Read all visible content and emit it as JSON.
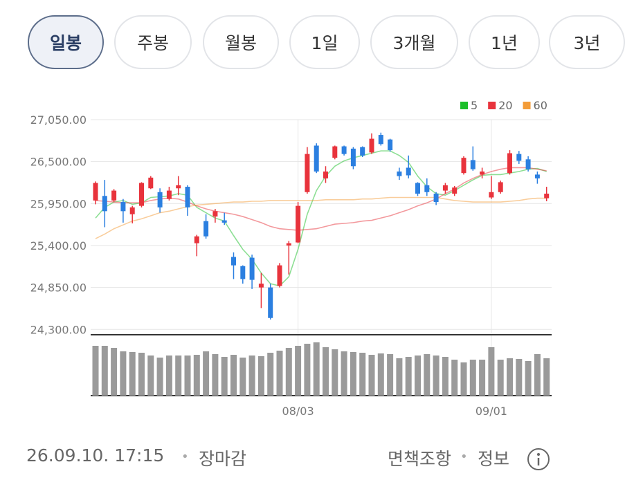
{
  "tabs": [
    "일봉",
    "주봉",
    "월봉",
    "1일",
    "3개월",
    "1년",
    "3년"
  ],
  "selected_tab": 0,
  "chart_data": {
    "type": "candlestick",
    "categories": [
      null,
      null,
      null,
      null,
      null,
      null,
      null,
      null,
      null,
      null,
      null,
      null,
      null,
      null,
      null,
      null,
      null,
      null,
      null,
      null,
      null,
      null,
      "08/03",
      null,
      null,
      null,
      null,
      null,
      null,
      null,
      null,
      null,
      null,
      null,
      null,
      null,
      null,
      null,
      null,
      null,
      null,
      null,
      null,
      "09/01",
      null,
      null,
      null,
      null,
      null,
      null
    ],
    "open": [
      25990,
      26050,
      25990,
      25970,
      25810,
      25920,
      26150,
      26100,
      26010,
      26150,
      26170,
      25430,
      25720,
      25780,
      25730,
      25250,
      25130,
      25240,
      24850,
      24850,
      24870,
      25400,
      25440,
      26100,
      26710,
      26280,
      26550,
      26700,
      26670,
      26690,
      26620,
      26850,
      26790,
      26370,
      26420,
      26220,
      26190,
      26080,
      26120,
      26080,
      26350,
      26520,
      26330,
      26030,
      26100,
      26350,
      26600,
      26530,
      26330,
      26020
    ],
    "high": [
      26240,
      26260,
      26140,
      26010,
      25920,
      26230,
      26310,
      26150,
      26170,
      26310,
      26190,
      25540,
      25810,
      25880,
      25830,
      25310,
      25140,
      25280,
      25040,
      24900,
      25170,
      25460,
      25970,
      26690,
      26740,
      26440,
      26710,
      26710,
      26690,
      26700,
      26870,
      26880,
      26800,
      26420,
      26580,
      26230,
      26280,
      26100,
      26220,
      26180,
      26570,
      26700,
      26420,
      26310,
      26250,
      26650,
      26640,
      26570,
      26370,
      26170
    ],
    "low": [
      25940,
      25640,
      25970,
      25700,
      25690,
      25900,
      26140,
      25830,
      25990,
      26060,
      25790,
      25260,
      25490,
      25700,
      25670,
      24960,
      24900,
      24830,
      24580,
      24430,
      24850,
      25020,
      25430,
      26080,
      26350,
      26220,
      26530,
      26580,
      26400,
      26560,
      26600,
      26710,
      26630,
      26260,
      26280,
      26050,
      26050,
      25930,
      26080,
      26050,
      26330,
      26380,
      26280,
      26010,
      26080,
      26330,
      26470,
      26370,
      26210,
      25980
    ],
    "close": [
      26220,
      25850,
      26120,
      25850,
      25900,
      26220,
      26290,
      25900,
      26120,
      26190,
      25900,
      25520,
      25520,
      25850,
      25700,
      25140,
      24960,
      24950,
      24900,
      24450,
      25140,
      25430,
      25920,
      26600,
      26370,
      26370,
      26700,
      26600,
      26440,
      26580,
      26800,
      26730,
      26650,
      26310,
      26320,
      26080,
      26100,
      25970,
      26190,
      26160,
      26550,
      26400,
      26370,
      26100,
      26230,
      26610,
      26510,
      26400,
      26280,
      26080
    ],
    "up_color": "#e8333c",
    "down_color": "#2b7fe0",
    "series": [
      {
        "name": "5",
        "color": "#1cbf2a",
        "values": [
          25760,
          25900,
          25970,
          25990,
          25940,
          25960,
          26030,
          26040,
          26050,
          26080,
          26060,
          25900,
          25830,
          25760,
          25720,
          25530,
          25350,
          25220,
          25040,
          24900,
          24870,
          24990,
          25350,
          25810,
          26120,
          26310,
          26440,
          26510,
          26550,
          26580,
          26610,
          26640,
          26640,
          26580,
          26490,
          26310,
          26170,
          26080,
          26060,
          26120,
          26190,
          26260,
          26320,
          26330,
          26330,
          26350,
          26370,
          26400,
          26410,
          26370
        ]
      },
      {
        "name": "20",
        "color": "#e8333c",
        "values": [
          25990,
          25980,
          25970,
          25960,
          25960,
          25960,
          25990,
          26010,
          26020,
          26010,
          25970,
          25920,
          25880,
          25850,
          25830,
          25810,
          25780,
          25740,
          25700,
          25650,
          25620,
          25610,
          25600,
          25610,
          25620,
          25650,
          25680,
          25690,
          25700,
          25720,
          25730,
          25760,
          25790,
          25830,
          25870,
          25920,
          25960,
          26010,
          26080,
          26140,
          26220,
          26280,
          26330,
          26370,
          26400,
          26420,
          26420,
          26420,
          26400,
          26380
        ]
      },
      {
        "name": "60",
        "color": "#f39c38",
        "values": [
          25490,
          25550,
          25620,
          25670,
          25720,
          25750,
          25790,
          25830,
          25850,
          25880,
          25910,
          25930,
          25940,
          25950,
          25960,
          25970,
          25970,
          25980,
          25980,
          25990,
          25990,
          25990,
          25990,
          25990,
          25990,
          26000,
          26000,
          26000,
          26000,
          26010,
          26010,
          26020,
          26030,
          26030,
          26030,
          26030,
          26030,
          26030,
          26010,
          25990,
          25980,
          25970,
          25970,
          25970,
          25970,
          25980,
          25990,
          26010,
          26020,
          26020
        ]
      }
    ],
    "volume": [
      72,
      72,
      69,
      64,
      63,
      62,
      58,
      55,
      58,
      58,
      58,
      59,
      64,
      60,
      56,
      59,
      55,
      58,
      57,
      62,
      65,
      69,
      72,
      75,
      77,
      70,
      67,
      64,
      63,
      62,
      59,
      61,
      60,
      54,
      56,
      58,
      60,
      58,
      56,
      52,
      48,
      52,
      52,
      70,
      52,
      54,
      53,
      50,
      60,
      54
    ],
    "volume_lim": [
      0,
      80
    ],
    "ylim": [
      24230,
      27050
    ],
    "yticks": [
      {
        "value": 27050,
        "label": "27,050.00"
      },
      {
        "value": 26500,
        "label": "26,500.00"
      },
      {
        "value": 25950,
        "label": "25,950.00"
      },
      {
        "value": 25400,
        "label": "25,400.00"
      },
      {
        "value": 24850,
        "label": "24,850.00"
      },
      {
        "value": 24300,
        "label": "24,300.00"
      }
    ],
    "grid": true
  },
  "footer": {
    "timestamp": "26.09.10. 17:15",
    "status": "장마감",
    "links": [
      "면책조항",
      "정보"
    ]
  }
}
